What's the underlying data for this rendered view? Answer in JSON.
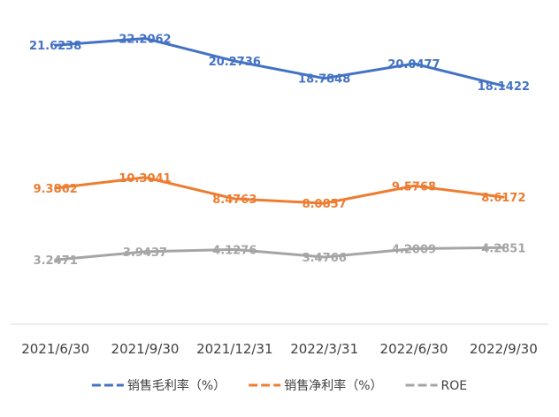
{
  "chart_data": {
    "type": "line",
    "title": "",
    "xlabel": "",
    "ylabel": "",
    "categories": [
      "2021/6/30",
      "2021/9/30",
      "2021/12/31",
      "2022/3/31",
      "2022/6/30",
      "2022/9/30"
    ],
    "series": [
      {
        "name": "销售毛利率（%）",
        "color": "#4472c4",
        "values": [
          21.6238,
          22.2062,
          20.2736,
          18.7848,
          20.0477,
          18.1422
        ],
        "labels": [
          "21.6238",
          "22.2062",
          "20.2736",
          "18.7848",
          "20.0477",
          "18.1422"
        ]
      },
      {
        "name": "销售净利率（%）",
        "color": "#ed7d31",
        "values": [
          9.3862,
          10.3041,
          8.4763,
          8.0857,
          9.5768,
          8.6172
        ],
        "labels": [
          "9.3862",
          "10.3041",
          "8.4763",
          "8.0857",
          "9.5768",
          "8.6172"
        ]
      },
      {
        "name": "ROE",
        "color": "#a5a5a5",
        "values": [
          3.2471,
          3.9437,
          4.1276,
          3.4766,
          4.2009,
          4.2851
        ],
        "labels": [
          "3.2471",
          "3.9437",
          "4.1276",
          "3.4766",
          "4.2009",
          "4.2851"
        ]
      }
    ],
    "ylim": [
      -2.5,
      25.5
    ],
    "grid": false,
    "legend_position": "bottom"
  }
}
